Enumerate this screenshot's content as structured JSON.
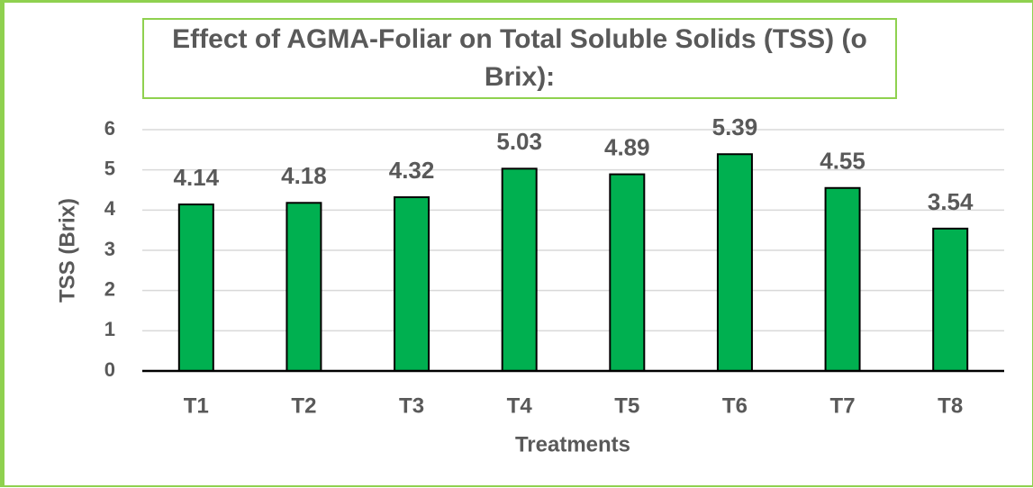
{
  "chart_data": {
    "type": "bar",
    "title": "Effect of AGMA-Foliar on Total Soluble Solids (TSS) (o Brix):",
    "x_label": "Treatments",
    "y_label": "TSS (Brix)",
    "categories": [
      "T1",
      "T2",
      "T3",
      "T4",
      "T5",
      "T6",
      "T7",
      "T8"
    ],
    "values": [
      4.14,
      4.18,
      4.32,
      5.03,
      4.89,
      5.39,
      4.55,
      3.54
    ],
    "color": "#00b050",
    "ylim": [
      0,
      6
    ],
    "yticks": [
      0,
      1,
      2,
      3,
      4,
      5,
      6
    ],
    "grid": true
  }
}
